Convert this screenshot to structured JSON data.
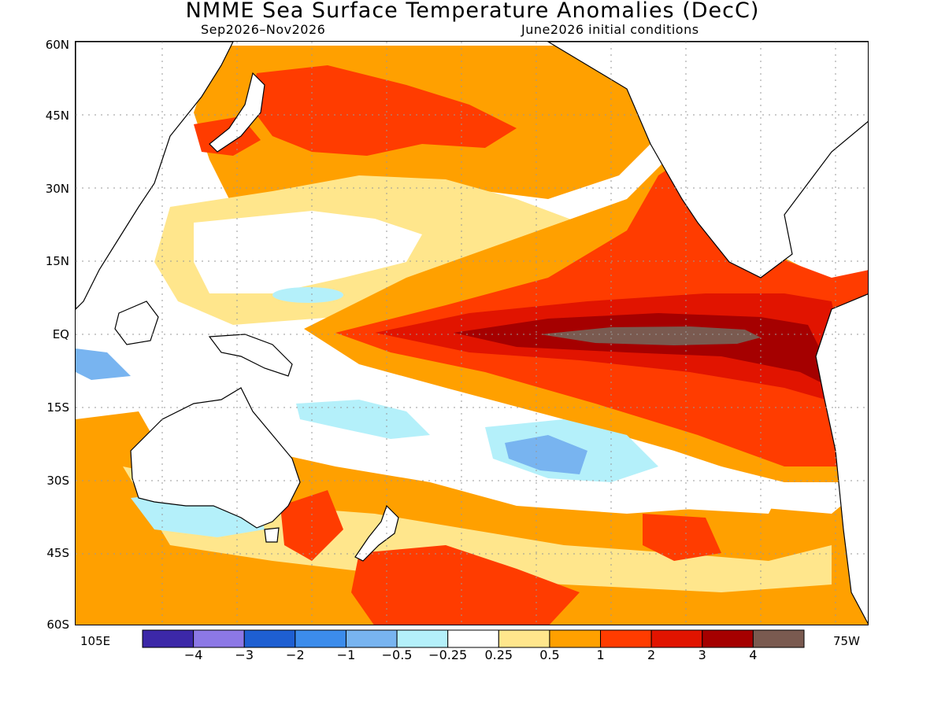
{
  "title": "NMME Sea Surface Temperature Anomalies (DecC)",
  "subtitle_left": "Sep2026–Nov2026",
  "subtitle_right": "June2026 initial conditions",
  "lat_labels": [
    "60N",
    "45N",
    "30N",
    "15N",
    "EQ",
    "15S",
    "30S",
    "45S",
    "60S"
  ],
  "lon_labels": {
    "left": "105E",
    "right": "75W"
  },
  "colorbar": {
    "colors": [
      "#3c28a8",
      "#8c78e6",
      "#1e5fd2",
      "#3c8ceb",
      "#78b4f0",
      "#b4f0fa",
      "#ffffff",
      "#ffe68c",
      "#ffa000",
      "#ff3c00",
      "#e11400",
      "#a50000",
      "#7a5a50"
    ],
    "ticks": [
      "−4",
      "−3",
      "−2",
      "−1",
      "−0.5",
      "−0.25",
      "0.25",
      "0.5",
      "1",
      "2",
      "3",
      "4"
    ]
  }
}
